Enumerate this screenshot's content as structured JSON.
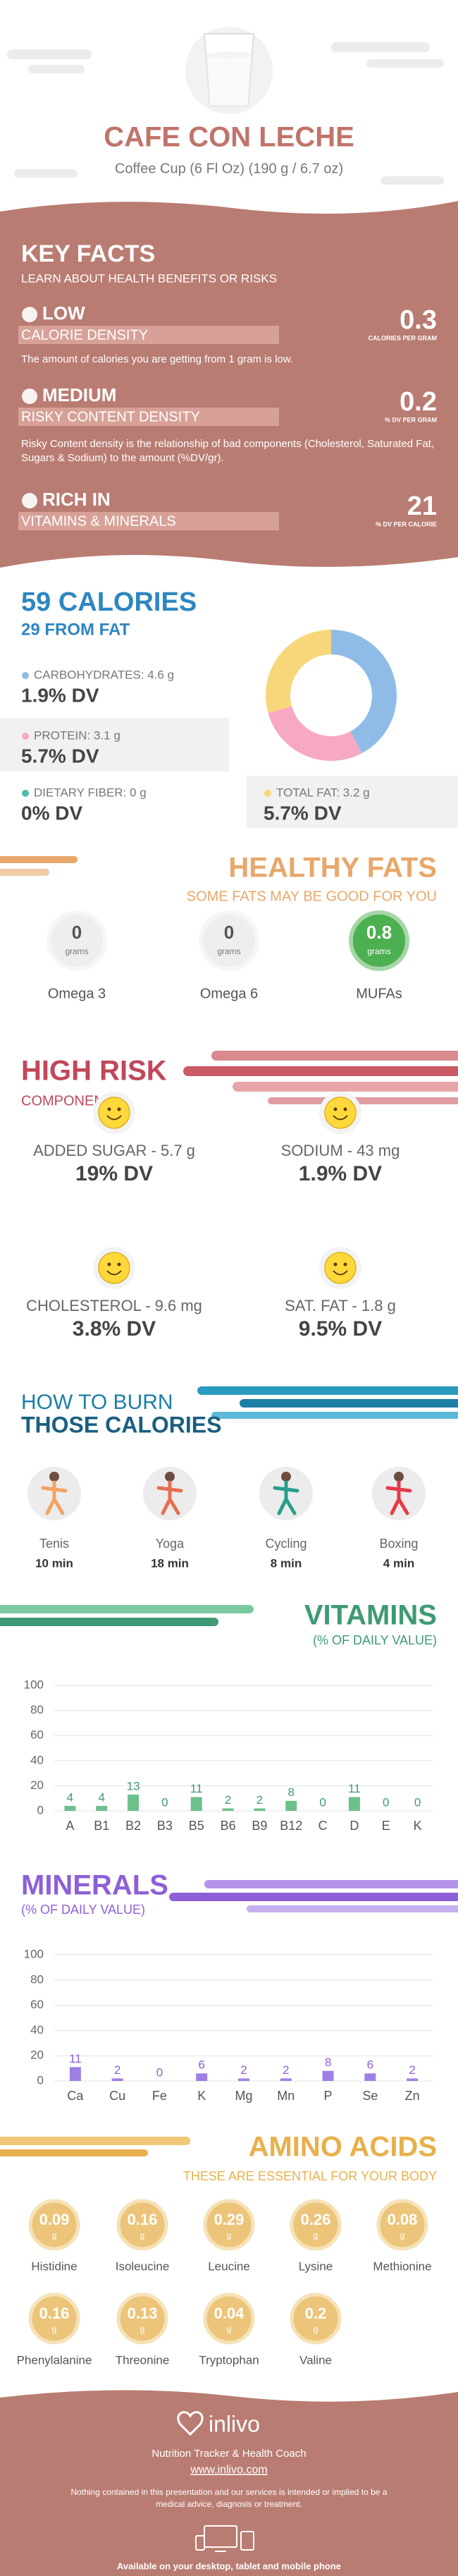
{
  "header": {
    "title": "CAFE CON LECHE",
    "subtitle": "Coffee Cup (6 Fl Oz) (190 g / 6.7 oz)"
  },
  "key_facts": {
    "title": "KEY FACTS",
    "subtitle": "LEARN ABOUT HEALTH BENEFITS OR RISKS",
    "items": [
      {
        "level": "LOW",
        "name": "CALORIE DENSITY",
        "value": "0.3",
        "unit": "CALORIES PER GRAM",
        "description": "The amount of calories you are getting from 1 gram is low."
      },
      {
        "level": "MEDIUM",
        "name": "RISKY CONTENT DENSITY",
        "value": "0.2",
        "unit": "% DV PER GRAM",
        "description": "Risky Content density is the relationship of bad components (Cholesterol, Saturated Fat, Sugars & Sodium) to the amount (%DV/gr)."
      },
      {
        "level": "RICH IN",
        "name": "VITAMINS & MINERALS",
        "value": "21",
        "unit": "% DV PER CALORIE"
      }
    ]
  },
  "calories": {
    "title": "59 CALORIES",
    "subtitle": "29 FROM FAT",
    "chart_data": {
      "type": "donut",
      "categories": [
        "CARBOHYDRATES: 4.6 g",
        "PROTEIN: 3.1 g",
        "DIETARY FIBER: 0 g",
        "TOTAL FAT: 3.2 g"
      ],
      "values": [
        4.6,
        3.1,
        0,
        3.2
      ],
      "dv_labels": [
        "1.9% DV",
        "5.7% DV",
        "0% DV",
        "5.7% DV"
      ],
      "colors": [
        "#8fbce6",
        "#f7a8c4",
        "#4dbdb0",
        "#f8d77a"
      ]
    }
  },
  "healthy_fats": {
    "title": "HEALTHY FATS",
    "subtitle": "SOME FATS MAY BE GOOD FOR YOU",
    "items": [
      {
        "value": "0",
        "unit": "grams",
        "name": "Omega 3",
        "color": "#eeeeee"
      },
      {
        "value": "0",
        "unit": "grams",
        "name": "Omega 6",
        "color": "#eeeeee"
      },
      {
        "value": "0.8",
        "unit": "grams",
        "name": "MUFAs",
        "color": "#4caf50"
      }
    ]
  },
  "high_risk": {
    "title": "HIGH RISK",
    "subtitle": "COMPONENTS",
    "items": [
      {
        "name": "ADDED SUGAR - 5.7 g",
        "dv": "19% DV"
      },
      {
        "name": "SODIUM - 43 mg",
        "dv": "1.9% DV"
      },
      {
        "name": "CHOLESTEROL - 9.6 mg",
        "dv": "3.8% DV"
      },
      {
        "name": "SAT. FAT - 1.8 g",
        "dv": "9.5% DV"
      }
    ]
  },
  "burn": {
    "title": "HOW TO BURN",
    "subtitle": "THOSE CALORIES",
    "items": [
      {
        "name": "Tenis",
        "time": "10 min"
      },
      {
        "name": "Yoga",
        "time": "18 min"
      },
      {
        "name": "Cycling",
        "time": "8 min"
      },
      {
        "name": "Boxing",
        "time": "4 min"
      }
    ]
  },
  "vitamins": {
    "chart_data": {
      "type": "bar",
      "title": "VITAMINS",
      "subtitle": "(% OF DAILY VALUE)",
      "categories": [
        "A",
        "B1",
        "B2",
        "B3",
        "B5",
        "B6",
        "B9",
        "B12",
        "C",
        "D",
        "E",
        "K"
      ],
      "values": [
        4,
        4,
        13,
        0,
        11,
        2,
        2,
        8,
        0,
        11,
        0,
        0
      ],
      "ylim": [
        0,
        100
      ],
      "yticks": [
        0,
        20,
        40,
        60,
        80,
        100
      ],
      "color": "#6cc08b",
      "grid": true
    }
  },
  "minerals": {
    "chart_data": {
      "type": "bar",
      "title": "MINERALS",
      "subtitle": "(% OF DAILY VALUE)",
      "categories": [
        "Ca",
        "Cu",
        "Fe",
        "K",
        "Mg",
        "Mn",
        "P",
        "Se",
        "Zn"
      ],
      "values": [
        11,
        2,
        0,
        6,
        2,
        2,
        8,
        6,
        2
      ],
      "ylim": [
        0,
        100
      ],
      "yticks": [
        0,
        20,
        40,
        60,
        80,
        100
      ],
      "color": "#a07fe2",
      "grid": true
    }
  },
  "amino_acids": {
    "title": "AMINO ACIDS",
    "subtitle": "THESE ARE ESSENTIAL FOR YOUR BODY",
    "unit": "g",
    "items": [
      {
        "value": "0.09",
        "name": "Histidine"
      },
      {
        "value": "0.16",
        "name": "Isoleucine"
      },
      {
        "value": "0.29",
        "name": "Leucine"
      },
      {
        "value": "0.26",
        "name": "Lysine"
      },
      {
        "value": "0.08",
        "name": "Methionine"
      },
      {
        "value": "0.16",
        "name": "Phenylalanine"
      },
      {
        "value": "0.13",
        "name": "Threonine"
      },
      {
        "value": "0.04",
        "name": "Tryptophan"
      },
      {
        "value": "0.2",
        "name": "Valine"
      }
    ]
  },
  "footer": {
    "brand": "inlivo",
    "tagline": "Nutrition Tracker & Health Coach",
    "url": "www.inlivo.com",
    "disclaimer": "Nothing contained in this presentation and our services is intended or implied to be a medical advice, diagnosis or treatment.",
    "available": "Available on your desktop, tablet and mobile phone"
  }
}
